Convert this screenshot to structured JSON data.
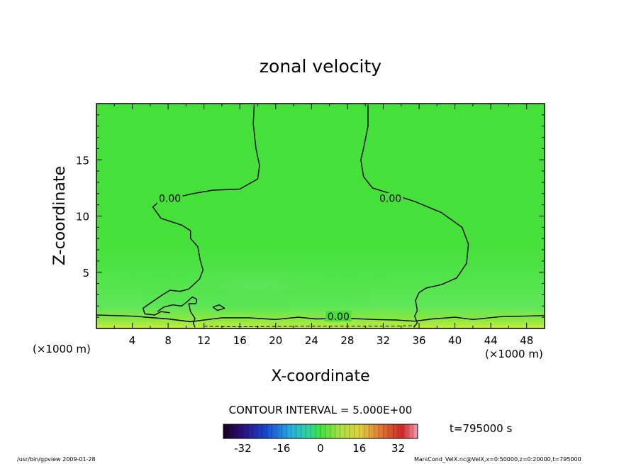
{
  "chart_data": {
    "type": "contour",
    "title": "zonal velocity",
    "xlabel": "X-coordinate",
    "ylabel": "Z-coordinate",
    "x_unit": "(×1000 m)",
    "y_unit": "(×1000 m)",
    "xlim": [
      0,
      50
    ],
    "ylim": [
      0,
      20
    ],
    "xticks": [
      4,
      8,
      12,
      16,
      20,
      24,
      28,
      32,
      36,
      40,
      44,
      48
    ],
    "yticks": [
      5,
      10,
      15
    ],
    "contour_interval_text": "CONTOUR INTERVAL = 5.000E+00",
    "contour_label": "0.00",
    "time_text": "t=795000 s",
    "colorbar": {
      "min": -40,
      "max": 40,
      "ticks": [
        -32,
        -16,
        0,
        16,
        32
      ]
    },
    "zero_contours": [
      {
        "name": "left-upper",
        "points": [
          [
            17.6,
            19.9
          ],
          [
            17.5,
            18.2
          ],
          [
            17.8,
            16
          ],
          [
            18.2,
            14.5
          ],
          [
            18,
            13.3
          ],
          [
            16,
            12.4
          ],
          [
            13,
            12.3
          ],
          [
            10.8,
            12
          ],
          [
            7,
            11.3
          ],
          [
            6.3,
            10.8
          ],
          [
            7.2,
            9.8
          ],
          [
            9.5,
            9.2
          ],
          [
            10.5,
            8.7
          ],
          [
            10.5,
            8
          ],
          [
            11.3,
            7.3
          ],
          [
            11.6,
            6
          ],
          [
            11.9,
            5.2
          ],
          [
            11.5,
            4.4
          ],
          [
            10.3,
            3.5
          ],
          [
            9.3,
            3.3
          ],
          [
            8.2,
            3.4
          ],
          [
            7.2,
            2.9
          ],
          [
            6.1,
            2.3
          ],
          [
            5.2,
            1.8
          ],
          [
            5.4,
            1.3
          ],
          [
            6.5,
            1.2
          ],
          [
            7.2,
            1.5
          ],
          [
            8.2,
            1.4
          ]
        ]
      },
      {
        "name": "left-lower-loop",
        "points": [
          [
            6.8,
            1.5
          ],
          [
            7.5,
            1.9
          ],
          [
            8.5,
            2.1
          ],
          [
            9.5,
            2.0
          ],
          [
            10,
            2.3
          ],
          [
            10.7,
            2.8
          ],
          [
            11.2,
            2.6
          ],
          [
            11.1,
            2.2
          ],
          [
            10.3,
            2.2
          ],
          [
            10.5,
            1.5
          ],
          [
            11,
            0.9
          ],
          [
            10.8,
            0.5
          ],
          [
            11,
            0.1
          ]
        ]
      },
      {
        "name": "right-upper",
        "points": [
          [
            30.3,
            19.9
          ],
          [
            30.3,
            18
          ],
          [
            29.8,
            16
          ],
          [
            29.5,
            15
          ],
          [
            29.8,
            13.5
          ],
          [
            30.8,
            12.5
          ],
          [
            32.8,
            12
          ],
          [
            35.5,
            11.3
          ],
          [
            38.5,
            10.3
          ],
          [
            40.8,
            9
          ],
          [
            41.5,
            7.5
          ],
          [
            41.3,
            5.8
          ],
          [
            40.2,
            4.5
          ],
          [
            38.5,
            3.9
          ],
          [
            36.8,
            3.6
          ],
          [
            36,
            3.2
          ],
          [
            35.6,
            2.5
          ],
          [
            35.8,
            1.6
          ],
          [
            35.5,
            1.1
          ],
          [
            35.8,
            0.5
          ],
          [
            35.4,
            0.1
          ]
        ]
      },
      {
        "name": "surface",
        "points": [
          [
            0,
            1.2
          ],
          [
            4,
            1.1
          ],
          [
            8,
            0.85
          ],
          [
            10.5,
            0.6
          ],
          [
            12,
            0.75
          ],
          [
            14,
            0.95
          ],
          [
            17,
            0.95
          ],
          [
            20,
            0.8
          ],
          [
            22.5,
            1.0
          ],
          [
            24.5,
            0.85
          ],
          [
            28,
            0.9
          ],
          [
            31,
            0.8
          ],
          [
            33.5,
            0.75
          ],
          [
            35.5,
            0.65
          ],
          [
            37.5,
            0.85
          ],
          [
            40,
            1.0
          ],
          [
            42,
            0.8
          ],
          [
            45,
            1.05
          ],
          [
            50,
            1.15
          ]
        ]
      },
      {
        "name": "blob",
        "points": [
          [
            13,
            1.9
          ],
          [
            13.7,
            2.1
          ],
          [
            14.3,
            1.8
          ],
          [
            13.5,
            1.6
          ],
          [
            13,
            1.9
          ]
        ]
      }
    ],
    "negative_contours": [
      {
        "name": "near-surface-dashed",
        "points": [
          [
            12,
            0.2
          ],
          [
            16,
            0.15
          ],
          [
            22,
            0.2
          ],
          [
            28,
            0.2
          ],
          [
            33,
            0.2
          ],
          [
            35.5,
            0.25
          ]
        ]
      }
    ],
    "contour_label_positions": [
      [
        8.2,
        11.5
      ],
      [
        32.8,
        11.5
      ],
      [
        27,
        1.0
      ]
    ]
  },
  "footer": {
    "left": "/usr/bin/gpview   2009-01-28",
    "right": "MarsCond_VelX.nc@VelX,x=0:50000,z=0:20000,t=795000"
  }
}
